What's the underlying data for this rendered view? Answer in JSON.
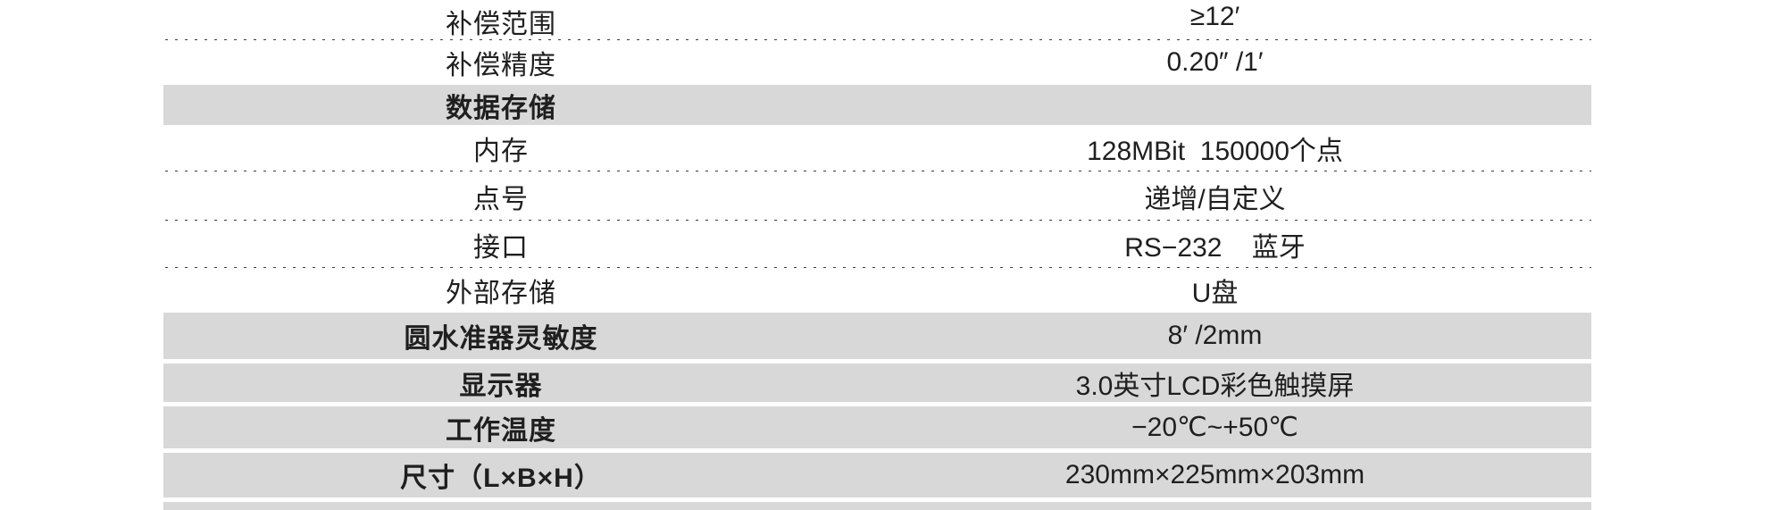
{
  "table": {
    "rows": [
      {
        "label": "补偿范围",
        "value": "≥12′"
      },
      {
        "label": "补偿精度",
        "value": "0.20″ /1′"
      },
      {
        "label": "数据存储",
        "value": ""
      },
      {
        "label": "内存",
        "value": "128MBit  150000个点"
      },
      {
        "label": "点号",
        "value": "递增/自定义"
      },
      {
        "label": "接口",
        "value": "RS−232    蓝牙"
      },
      {
        "label": "外部存储",
        "value": "U盘"
      },
      {
        "label": "圆水准器灵敏度",
        "value": "8′ /2mm"
      },
      {
        "label": "显示器",
        "value": "3.0英寸LCD彩色触摸屏"
      },
      {
        "label": "工作温度",
        "value": "−20℃~+50℃"
      },
      {
        "label": "尺寸（L×B×H）",
        "value": "230mm×225mm×203mm"
      }
    ]
  },
  "colors": {
    "row_highlight": "#d8d8d8",
    "text": "#1f1f1f",
    "dotted_divider": "#3a3a3a",
    "background": "#ffffff"
  }
}
